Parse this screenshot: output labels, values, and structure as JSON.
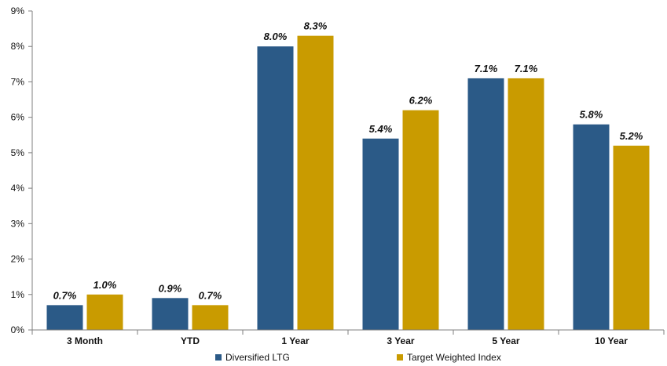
{
  "chart_data": {
    "type": "bar",
    "categories": [
      "3 Month",
      "YTD",
      "1 Year",
      "3 Year",
      "5 Year",
      "10 Year"
    ],
    "series": [
      {
        "name": "Diversified LTG",
        "color": "#2b5a87",
        "values": [
          0.7,
          0.9,
          8.0,
          5.4,
          7.1,
          5.8
        ],
        "labels": [
          "0.7%",
          "0.9%",
          "8.0%",
          "5.4%",
          "7.1%",
          "5.8%"
        ]
      },
      {
        "name": "Target Weighted Index",
        "color": "#c99b00",
        "values": [
          1.0,
          0.7,
          8.3,
          6.2,
          7.1,
          5.2
        ],
        "labels": [
          "1.0%",
          "0.7%",
          "8.3%",
          "6.2%",
          "7.1%",
          "5.2%"
        ]
      }
    ],
    "yticks": [
      "0%",
      "1%",
      "2%",
      "3%",
      "4%",
      "5%",
      "6%",
      "7%",
      "8%",
      "9%"
    ],
    "ylim": [
      0,
      9
    ],
    "grid": false,
    "legend_position": "bottom"
  }
}
